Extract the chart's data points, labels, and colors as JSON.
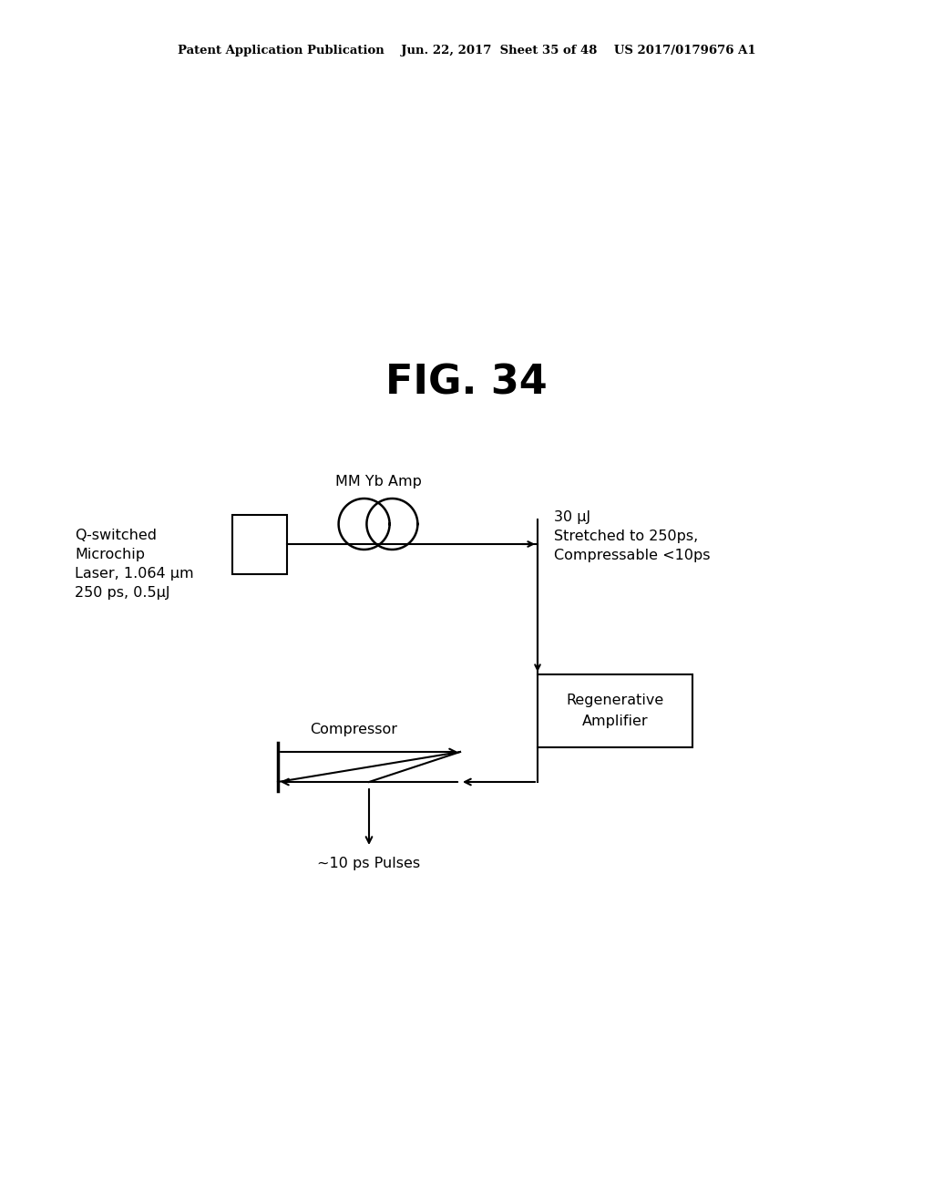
{
  "bg_color": "#ffffff",
  "header_text": "Patent Application Publication    Jun. 22, 2017  Sheet 35 of 48    US 2017/0179676 A1",
  "fig_title": "FIG. 34",
  "laser_label": "Q-switched\nMicrochip\nLaser, 1.064 μm\n250 ps, 0.5μJ",
  "amp_label": "MM Yb Amp",
  "output_label": "30 μJ\nStretched to 250ps,\nCompressable <10ps",
  "compressor_label": "Compressor",
  "regen_label": "Regenerative\nAmplifier",
  "output2_label": "~10 ps Pulses",
  "header_fontsize": 9.5,
  "fig_title_fontsize": 32,
  "label_fontsize": 11.5
}
